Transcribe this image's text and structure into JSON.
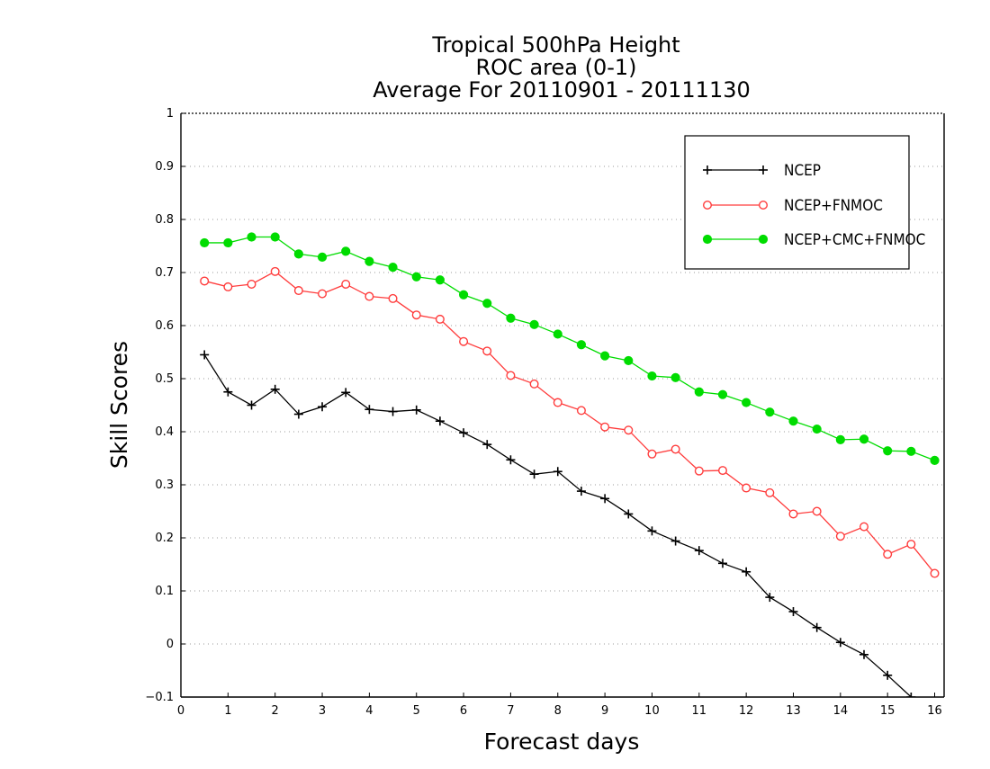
{
  "chart_data": {
    "type": "line",
    "title": [
      "Tropical 500hPa Height",
      "ROC area (0-1)",
      "Average For 20110901 - 20111130"
    ],
    "xlabel": "Forecast days",
    "ylabel": "Skill Scores",
    "xlim": [
      0,
      16.2
    ],
    "ylim": [
      -0.1,
      1
    ],
    "x_ticks": [
      0,
      1,
      2,
      3,
      4,
      5,
      6,
      7,
      8,
      9,
      10,
      11,
      12,
      13,
      14,
      15,
      16
    ],
    "y_ticks": [
      -0.1,
      0,
      0.1,
      0.2,
      0.3,
      0.4,
      0.5,
      0.6,
      0.7,
      0.8,
      0.9,
      1
    ],
    "y_tick_labels": [
      "−0.1",
      "0",
      "0.1",
      "0.2",
      "0.3",
      "0.4",
      "0.5",
      "0.6",
      "0.7",
      "0.8",
      "0.9",
      "1"
    ],
    "grid": "horizontal-dotted",
    "legend_position": "top-right",
    "x": [
      0.5,
      1,
      1.5,
      2,
      2.5,
      3,
      3.5,
      4,
      4.5,
      5,
      5.5,
      6,
      6.5,
      7,
      7.5,
      8,
      8.5,
      9,
      9.5,
      10,
      10.5,
      11,
      11.5,
      12,
      12.5,
      13,
      13.5,
      14,
      14.5,
      15,
      15.5,
      16
    ],
    "series": [
      {
        "name": "NCEP",
        "color": "#000000",
        "marker": "plus",
        "values": [
          0.545,
          0.475,
          0.45,
          0.48,
          0.433,
          0.447,
          0.474,
          0.442,
          0.438,
          0.441,
          0.42,
          0.398,
          0.376,
          0.347,
          0.32,
          0.325,
          0.288,
          0.274,
          0.245,
          0.213,
          0.194,
          0.176,
          0.152,
          0.136,
          0.088,
          0.061,
          0.031,
          0.003,
          -0.02,
          -0.059,
          -0.1,
          null
        ]
      },
      {
        "name": "NCEP+FNMOC",
        "color": "#ff3c3c",
        "marker": "open-circle",
        "values": [
          0.684,
          0.673,
          0.678,
          0.702,
          0.666,
          0.66,
          0.678,
          0.655,
          0.651,
          0.62,
          0.612,
          0.57,
          0.552,
          0.506,
          0.49,
          0.455,
          0.44,
          0.409,
          0.403,
          0.358,
          0.367,
          0.326,
          0.327,
          0.294,
          0.285,
          0.245,
          0.25,
          0.203,
          0.221,
          0.169,
          0.188,
          0.133
        ]
      },
      {
        "name": "NCEP+CMC+FNMOC",
        "color": "#00dc00",
        "marker": "filled-circle",
        "values": [
          0.756,
          0.756,
          0.767,
          0.767,
          0.735,
          0.729,
          0.74,
          0.721,
          0.71,
          0.692,
          0.686,
          0.658,
          0.642,
          0.614,
          0.602,
          0.584,
          0.564,
          0.543,
          0.534,
          0.505,
          0.502,
          0.475,
          0.47,
          0.455,
          0.437,
          0.42,
          0.405,
          0.385,
          0.386,
          0.364,
          0.363,
          0.346
        ]
      }
    ]
  }
}
